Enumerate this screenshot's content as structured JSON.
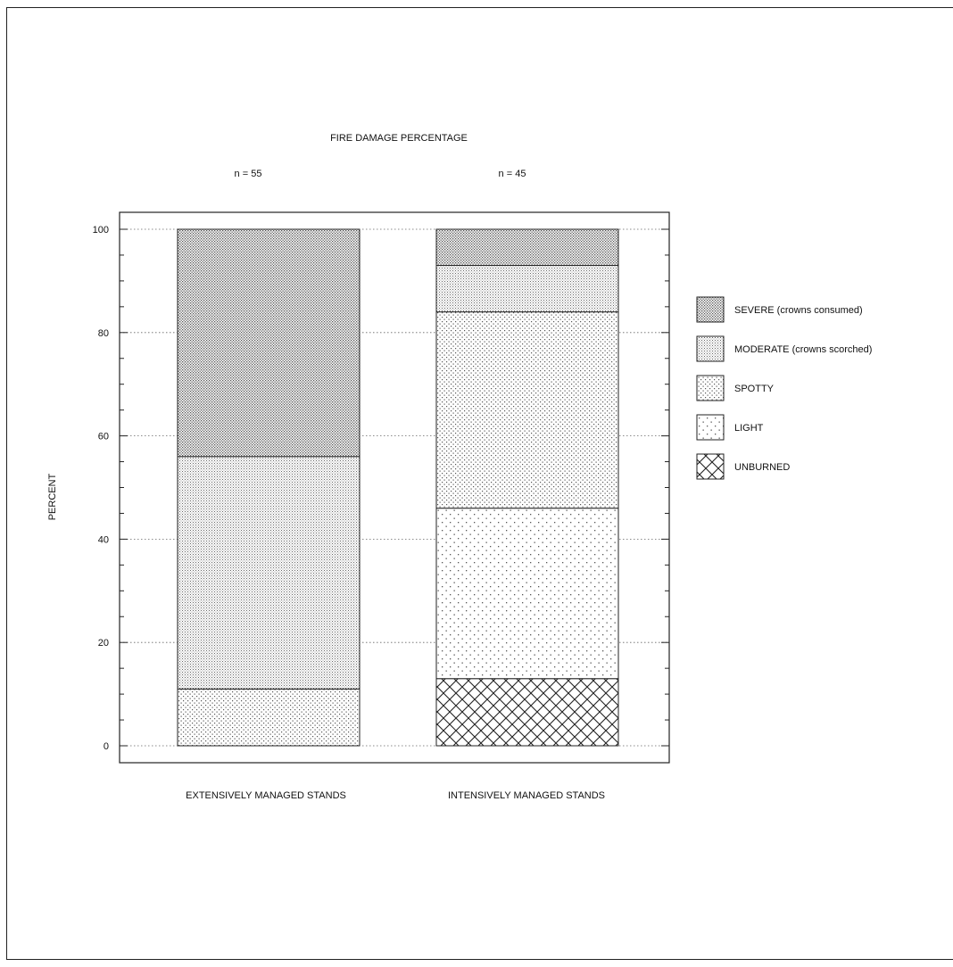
{
  "chart_data": {
    "type": "bar",
    "stacked": true,
    "title": "FIRE DAMAGE PERCENTAGE",
    "ylabel": "PERCENT",
    "ylim": [
      0,
      100
    ],
    "yticks": [
      0,
      20,
      40,
      60,
      80,
      100
    ],
    "grid": true,
    "legend_position": "right",
    "categories": [
      "EXTENSIVELY MANAGED STANDS",
      "INTENSIVELY MANAGED STANDS"
    ],
    "sample_sizes": [
      "n = 55",
      "n = 45"
    ],
    "series": [
      {
        "name": "UNBURNED",
        "values": [
          0,
          13
        ]
      },
      {
        "name": "LIGHT",
        "values": [
          0,
          33
        ]
      },
      {
        "name": "SPOTTY",
        "values": [
          11,
          38
        ]
      },
      {
        "name": "MODERATE (crowns scorched)",
        "values": [
          45,
          9
        ]
      },
      {
        "name": "SEVERE (crowns consumed)",
        "values": [
          44,
          7
        ]
      }
    ],
    "legend_order": [
      "SEVERE (crowns consumed)",
      "MODERATE (crowns scorched)",
      "SPOTTY",
      "LIGHT",
      "UNBURNED"
    ]
  }
}
